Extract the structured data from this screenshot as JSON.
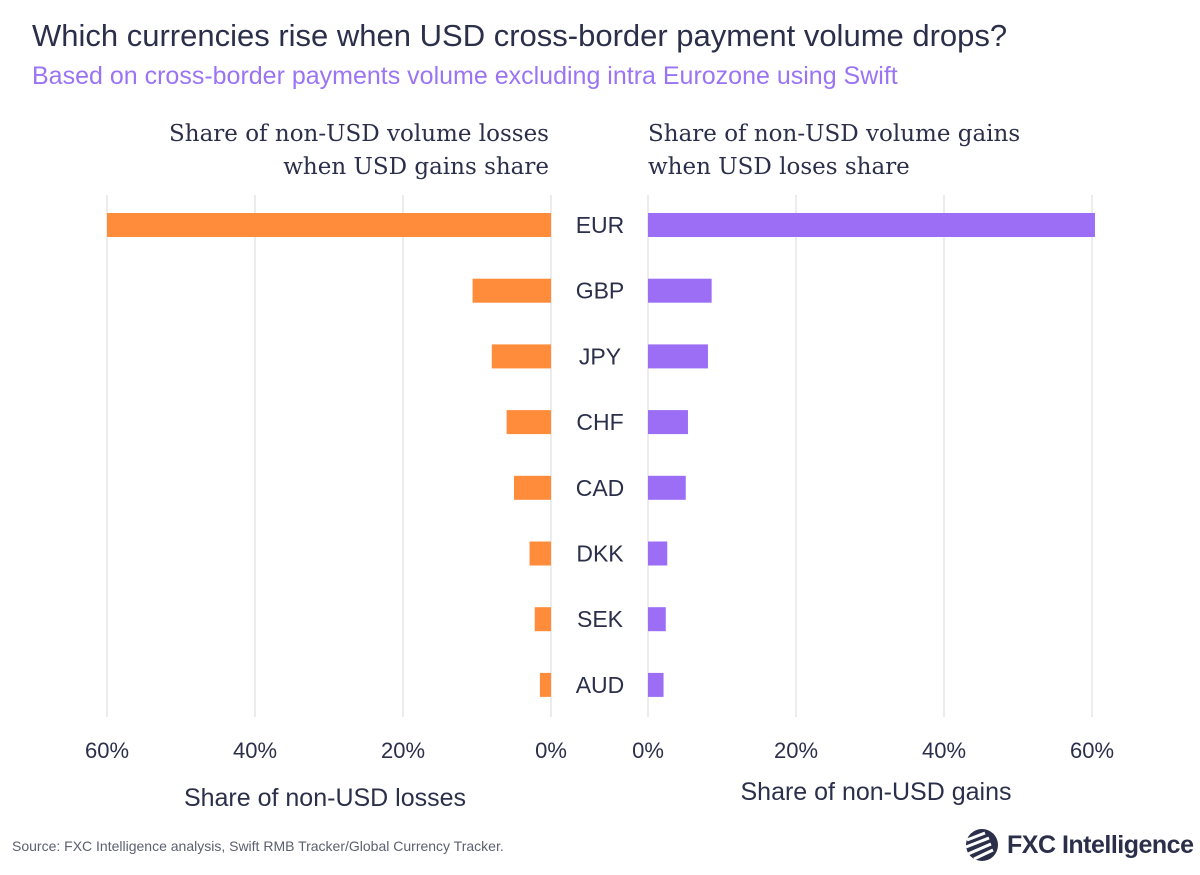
{
  "title": "Which currencies rise when USD cross-border payment volume drops?",
  "subtitle": "Based on cross-border payments volume excluding intra Eurozone using Swift",
  "source": "Source: FXC Intelligence analysis, Swift RMB Tracker/Global Currency Tracker.",
  "logo_text": "FXC Intelligence",
  "chart_data": [
    {
      "type": "bar",
      "orientation": "horizontal",
      "direction": "reversed",
      "title_line1": "Share of non-USD volume losses",
      "title_line2": "when USD gains share",
      "xlabel": "Share of non-USD losses",
      "categories": [
        "EUR",
        "GBP",
        "JPY",
        "CHF",
        "CAD",
        "DKK",
        "SEK",
        "AUD"
      ],
      "values": [
        60.0,
        10.6,
        8.0,
        6.0,
        5.0,
        2.9,
        2.2,
        1.5
      ],
      "xlim": [
        0,
        60
      ],
      "ticks": [
        "0%",
        "20%",
        "40%",
        "60%"
      ],
      "tick_values": [
        0,
        20,
        40,
        60
      ],
      "color": "#ff8c3a",
      "grid": true
    },
    {
      "type": "bar",
      "orientation": "horizontal",
      "title_line1": "Share of non-USD volume gains",
      "title_line2": "when USD loses share",
      "xlabel": "Share of non-USD gains",
      "categories": [
        "EUR",
        "GBP",
        "JPY",
        "CHF",
        "CAD",
        "DKK",
        "SEK",
        "AUD"
      ],
      "values": [
        60.4,
        8.6,
        8.1,
        5.4,
        5.1,
        2.6,
        2.4,
        2.1
      ],
      "xlim": [
        0,
        60
      ],
      "ticks": [
        "0%",
        "20%",
        "40%",
        "60%"
      ],
      "tick_values": [
        0,
        20,
        40,
        60
      ],
      "color": "#9b6ef5",
      "grid": true
    }
  ]
}
